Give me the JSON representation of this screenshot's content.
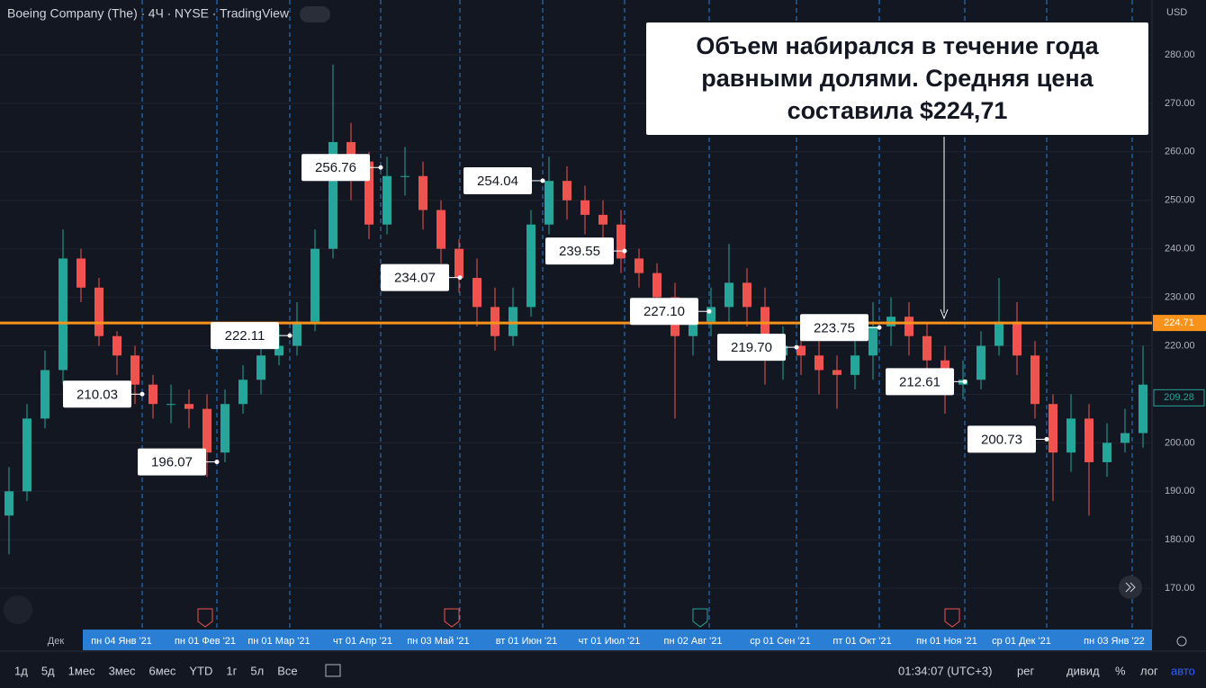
{
  "chart_data": {
    "type": "candlestick",
    "header": [
      "Boeing Company (The)",
      "4Ч",
      "NYSE",
      "TradingView"
    ],
    "currency": "USD",
    "callout": [
      "Объем набирался в течение года",
      "равными долями. Средняя цена",
      "составила $224,71"
    ],
    "categories": [
      "Дек",
      "пн 04 Янв '21",
      "пн 01 Фев '21",
      "пн 01 Мар '21",
      "чт 01 Апр '21",
      "пн 03 Май '21",
      "вт 01 Июн '21",
      "чт 01 Июл '21",
      "пн 02 Авг '21",
      "ср 01 Сен '21",
      "пт 01 Окт '21",
      "пн 01 Ноя '21",
      "ср 01 Дек '21",
      "пн 03 Янв '22"
    ],
    "month_marks": [
      null,
      210.03,
      196.07,
      222.11,
      256.76,
      234.07,
      254.04,
      239.55,
      {
        "value": 227.1,
        "label": "227.10"
      },
      {
        "value": 219.7,
        "label": "219.70"
      },
      223.75,
      212.61,
      200.73,
      null
    ],
    "open": [
      185,
      190,
      205,
      215,
      238,
      232,
      222,
      218,
      212,
      208,
      208,
      207,
      198,
      208,
      213,
      218,
      220,
      225,
      240,
      262,
      258,
      245,
      255,
      255,
      248,
      240,
      234,
      228,
      222,
      228,
      245,
      254,
      250,
      247,
      245,
      238,
      235,
      230,
      222,
      225,
      228,
      233,
      228,
      218,
      220,
      218,
      215,
      214,
      218,
      224,
      226,
      222,
      217,
      212,
      213,
      220,
      225,
      218,
      208,
      198,
      205,
      196,
      200,
      202
    ],
    "high": [
      195,
      208,
      219,
      244,
      240,
      234,
      223,
      220,
      214,
      212,
      211,
      210,
      211,
      216,
      221,
      224,
      229,
      244,
      278,
      266,
      260,
      259,
      261,
      258,
      250,
      242,
      238,
      232,
      232,
      248,
      259,
      257,
      253,
      250,
      248,
      240,
      237,
      233,
      228,
      232,
      241,
      236,
      232,
      224,
      223,
      221,
      218,
      221,
      229,
      230,
      229,
      225,
      220,
      217,
      223,
      234,
      229,
      221,
      210,
      210,
      208,
      204,
      207,
      220
    ],
    "low": [
      177,
      188,
      203,
      212,
      229,
      220,
      214,
      208,
      205,
      204,
      203,
      193,
      196,
      206,
      210,
      216,
      218,
      223,
      238,
      250,
      242,
      243,
      251,
      244,
      237,
      231,
      224,
      219,
      220,
      226,
      243,
      246,
      243,
      241,
      235,
      232,
      226,
      205,
      218,
      222,
      225,
      224,
      212,
      213,
      214,
      210,
      207,
      211,
      213,
      220,
      218,
      213,
      206,
      209,
      211,
      218,
      214,
      205,
      188,
      194,
      185,
      193,
      198,
      199
    ],
    "close": [
      190,
      205,
      215,
      238,
      232,
      222,
      218,
      212,
      208,
      208,
      207,
      198,
      208,
      213,
      218,
      220,
      225,
      240,
      262,
      258,
      245,
      255,
      255,
      248,
      240,
      234,
      228,
      222,
      228,
      245,
      254,
      250,
      247,
      245,
      238,
      235,
      230,
      222,
      225,
      228,
      233,
      228,
      218,
      220,
      218,
      215,
      214,
      218,
      224,
      226,
      222,
      217,
      212,
      213,
      220,
      225,
      218,
      208,
      198,
      205,
      196,
      200,
      202,
      212
    ],
    "up_color": "#26a69a",
    "down_color": "#ef5350",
    "average_price": 224.71,
    "average_color": "#f7931a",
    "current_price": 209.28,
    "ylim": [
      161.5,
      291.3
    ],
    "yticks": [
      {
        "value": 170,
        "label": "170.00"
      },
      {
        "value": 180,
        "label": "180.00"
      },
      {
        "value": 190,
        "label": "190.00"
      },
      {
        "value": 200,
        "label": "200.00"
      },
      {
        "value": 210,
        "label": "210.00"
      },
      {
        "value": 220,
        "label": "220.00"
      },
      {
        "value": 230,
        "label": "230.00"
      },
      {
        "value": 240,
        "label": "240.00"
      },
      {
        "value": 250,
        "label": "250.00"
      },
      {
        "value": 260,
        "label": "260.00"
      },
      {
        "value": 270,
        "label": "270.00"
      },
      {
        "value": 280,
        "label": "280.00"
      }
    ],
    "grid": true,
    "toolbar": [
      "1д",
      "5д",
      "1мес",
      "3мес",
      "6мес",
      "YTD",
      "1г",
      "5л",
      "Все"
    ],
    "clock": "01:34:07 (UTC+3)",
    "toolbar_right": [
      "рег",
      "дивид",
      "%",
      "лог",
      "авто"
    ]
  }
}
